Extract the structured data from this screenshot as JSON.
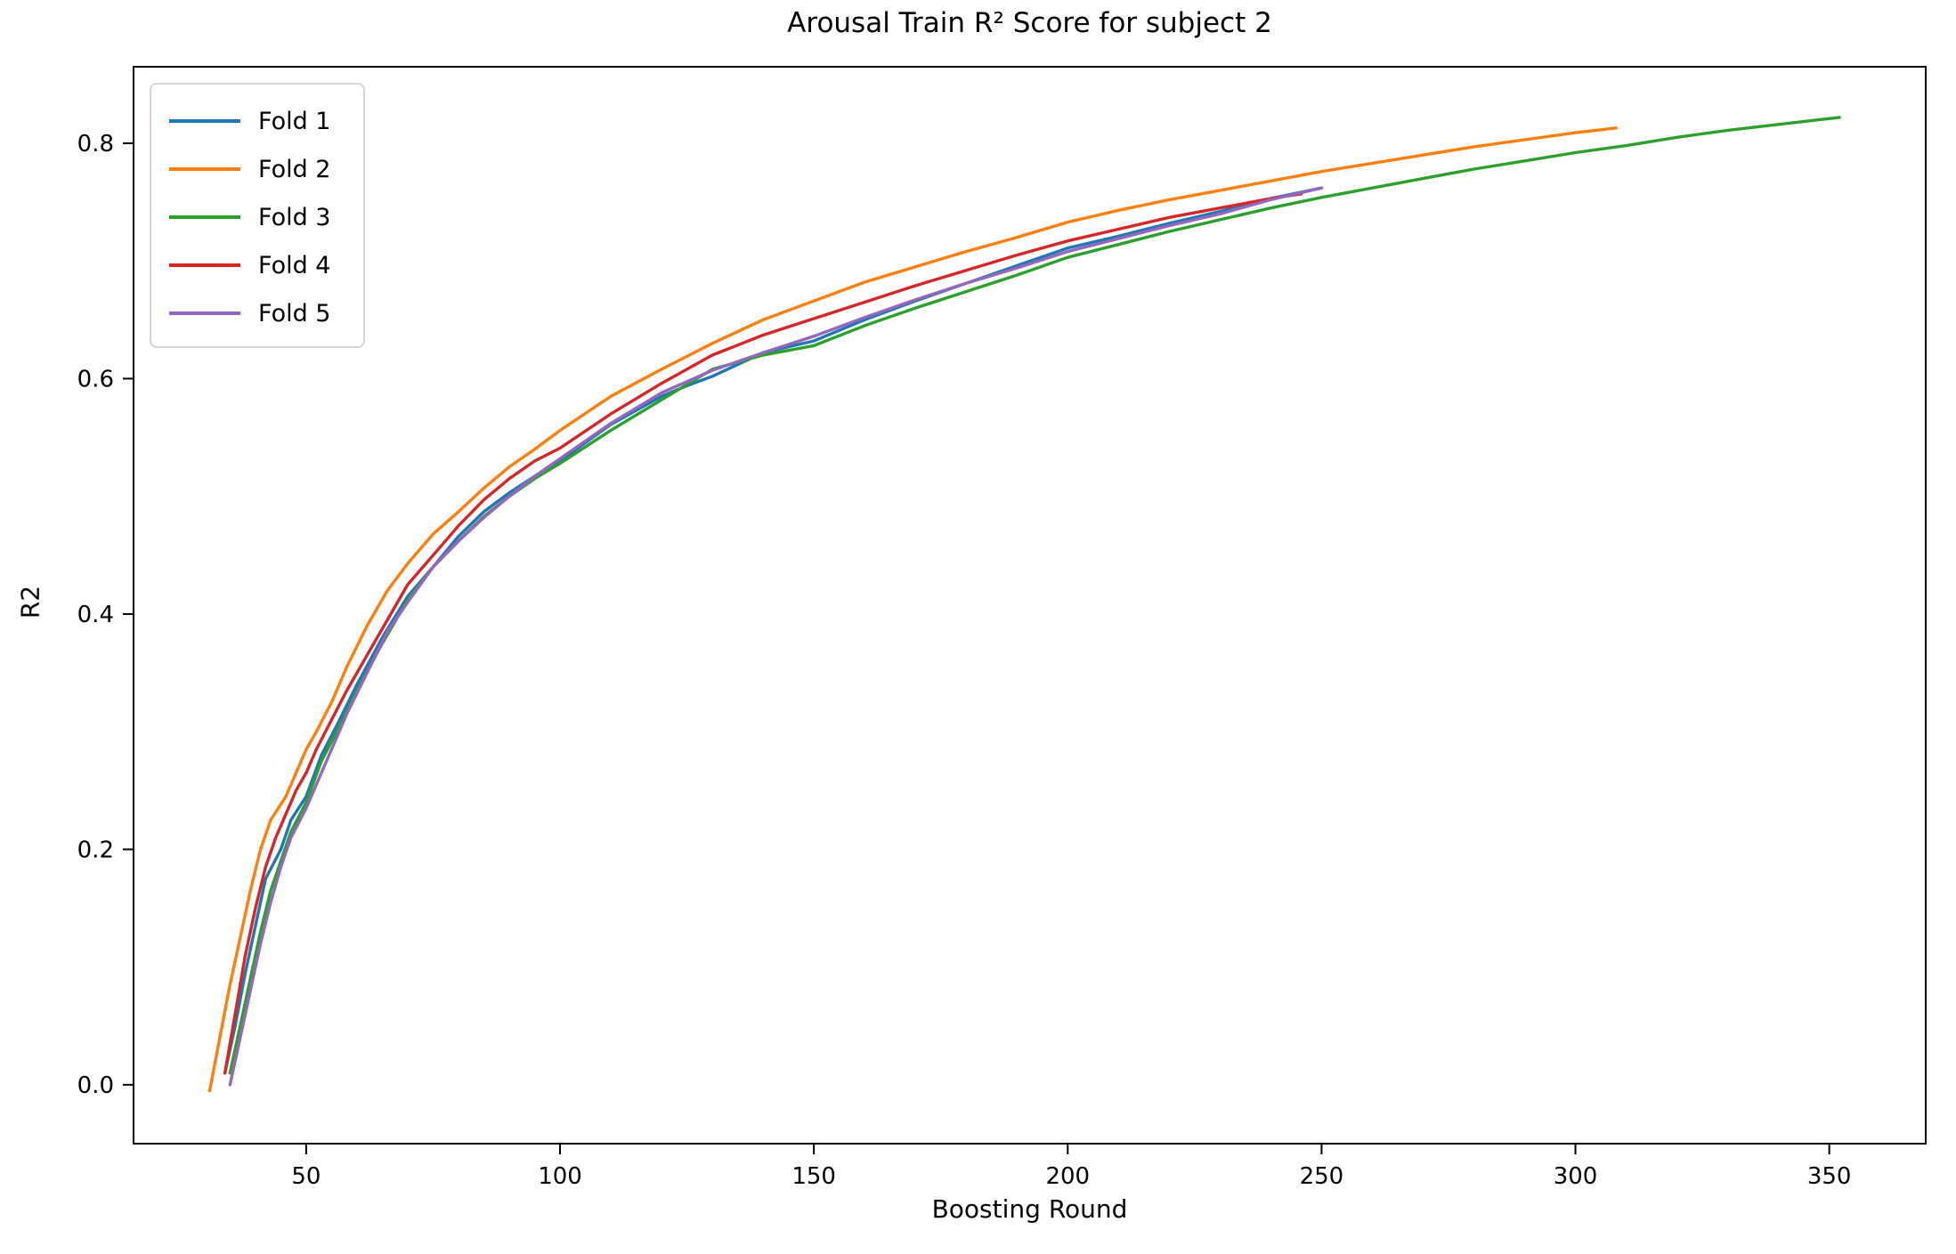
{
  "title": "Arousal Train R² Score for subject 2",
  "axes": {
    "xlabel": "Boosting Round",
    "ylabel": "R2"
  },
  "chart_data": {
    "type": "line",
    "title": "Arousal Train R² Score for subject 2",
    "xlabel": "Boosting Round",
    "ylabel": "R2",
    "xlim": [
      16,
      369
    ],
    "ylim": [
      -0.05,
      0.865
    ],
    "x_ticks": [
      50,
      100,
      150,
      200,
      250,
      300,
      350
    ],
    "y_ticks": [
      0.0,
      0.2,
      0.4,
      0.6,
      0.8
    ],
    "grid": false,
    "legend_position": "upper left",
    "series": [
      {
        "name": "Fold 1",
        "color": "#1f77b4",
        "points": [
          [
            34,
            0.01
          ],
          [
            36,
            0.05
          ],
          [
            38,
            0.095
          ],
          [
            40,
            0.135
          ],
          [
            42,
            0.175
          ],
          [
            45,
            0.2
          ],
          [
            47,
            0.225
          ],
          [
            50,
            0.245
          ],
          [
            53,
            0.28
          ],
          [
            56,
            0.305
          ],
          [
            60,
            0.34
          ],
          [
            65,
            0.38
          ],
          [
            70,
            0.415
          ],
          [
            75,
            0.44
          ],
          [
            80,
            0.466
          ],
          [
            85,
            0.487
          ],
          [
            90,
            0.503
          ],
          [
            95,
            0.517
          ],
          [
            100,
            0.53
          ],
          [
            110,
            0.561
          ],
          [
            120,
            0.585
          ],
          [
            125,
            0.594
          ],
          [
            130,
            0.602
          ],
          [
            135,
            0.612
          ],
          [
            140,
            0.622
          ],
          [
            150,
            0.632
          ],
          [
            160,
            0.65
          ],
          [
            170,
            0.666
          ],
          [
            180,
            0.681
          ],
          [
            190,
            0.696
          ],
          [
            200,
            0.711
          ],
          [
            210,
            0.721
          ],
          [
            220,
            0.732
          ],
          [
            230,
            0.742
          ],
          [
            240,
            0.753
          ],
          [
            250,
            0.762
          ]
        ]
      },
      {
        "name": "Fold 2",
        "color": "#ff7f0e",
        "points": [
          [
            31,
            -0.005
          ],
          [
            33,
            0.04
          ],
          [
            35,
            0.085
          ],
          [
            37,
            0.125
          ],
          [
            39,
            0.165
          ],
          [
            41,
            0.2
          ],
          [
            43,
            0.225
          ],
          [
            46,
            0.245
          ],
          [
            48,
            0.265
          ],
          [
            50,
            0.285
          ],
          [
            52,
            0.3
          ],
          [
            55,
            0.325
          ],
          [
            58,
            0.355
          ],
          [
            62,
            0.39
          ],
          [
            66,
            0.42
          ],
          [
            70,
            0.443
          ],
          [
            75,
            0.468
          ],
          [
            80,
            0.487
          ],
          [
            85,
            0.507
          ],
          [
            90,
            0.525
          ],
          [
            95,
            0.54
          ],
          [
            100,
            0.556
          ],
          [
            110,
            0.585
          ],
          [
            120,
            0.608
          ],
          [
            130,
            0.63
          ],
          [
            140,
            0.65
          ],
          [
            150,
            0.666
          ],
          [
            160,
            0.682
          ],
          [
            170,
            0.695
          ],
          [
            180,
            0.708
          ],
          [
            190,
            0.72
          ],
          [
            200,
            0.733
          ],
          [
            210,
            0.743
          ],
          [
            220,
            0.752
          ],
          [
            230,
            0.76
          ],
          [
            240,
            0.768
          ],
          [
            250,
            0.776
          ],
          [
            260,
            0.783
          ],
          [
            270,
            0.79
          ],
          [
            280,
            0.797
          ],
          [
            290,
            0.803
          ],
          [
            300,
            0.809
          ],
          [
            308,
            0.813
          ]
        ]
      },
      {
        "name": "Fold 3",
        "color": "#2ca02c",
        "points": [
          [
            35,
            0.01
          ],
          [
            37,
            0.05
          ],
          [
            39,
            0.09
          ],
          [
            41,
            0.13
          ],
          [
            43,
            0.165
          ],
          [
            45,
            0.19
          ],
          [
            47,
            0.215
          ],
          [
            50,
            0.24
          ],
          [
            53,
            0.275
          ],
          [
            56,
            0.3
          ],
          [
            60,
            0.335
          ],
          [
            65,
            0.375
          ],
          [
            70,
            0.412
          ],
          [
            75,
            0.44
          ],
          [
            80,
            0.462
          ],
          [
            85,
            0.483
          ],
          [
            90,
            0.5
          ],
          [
            95,
            0.515
          ],
          [
            100,
            0.528
          ],
          [
            110,
            0.556
          ],
          [
            120,
            0.582
          ],
          [
            130,
            0.608
          ],
          [
            140,
            0.62
          ],
          [
            150,
            0.628
          ],
          [
            160,
            0.645
          ],
          [
            170,
            0.66
          ],
          [
            180,
            0.674
          ],
          [
            190,
            0.688
          ],
          [
            200,
            0.703
          ],
          [
            210,
            0.714
          ],
          [
            220,
            0.725
          ],
          [
            230,
            0.735
          ],
          [
            240,
            0.745
          ],
          [
            250,
            0.754
          ],
          [
            260,
            0.762
          ],
          [
            270,
            0.77
          ],
          [
            280,
            0.778
          ],
          [
            290,
            0.785
          ],
          [
            300,
            0.792
          ],
          [
            310,
            0.798
          ],
          [
            320,
            0.805
          ],
          [
            330,
            0.811
          ],
          [
            340,
            0.816
          ],
          [
            352,
            0.822
          ]
        ]
      },
      {
        "name": "Fold 4",
        "color": "#d62728",
        "points": [
          [
            34,
            0.01
          ],
          [
            36,
            0.06
          ],
          [
            38,
            0.11
          ],
          [
            40,
            0.15
          ],
          [
            42,
            0.185
          ],
          [
            44,
            0.21
          ],
          [
            46,
            0.23
          ],
          [
            48,
            0.25
          ],
          [
            50,
            0.265
          ],
          [
            52,
            0.285
          ],
          [
            55,
            0.31
          ],
          [
            58,
            0.335
          ],
          [
            62,
            0.365
          ],
          [
            66,
            0.395
          ],
          [
            70,
            0.425
          ],
          [
            75,
            0.45
          ],
          [
            80,
            0.475
          ],
          [
            85,
            0.497
          ],
          [
            90,
            0.515
          ],
          [
            95,
            0.53
          ],
          [
            100,
            0.541
          ],
          [
            110,
            0.57
          ],
          [
            120,
            0.596
          ],
          [
            130,
            0.62
          ],
          [
            140,
            0.637
          ],
          [
            150,
            0.651
          ],
          [
            160,
            0.665
          ],
          [
            170,
            0.679
          ],
          [
            180,
            0.692
          ],
          [
            190,
            0.705
          ],
          [
            200,
            0.717
          ],
          [
            210,
            0.727
          ],
          [
            220,
            0.737
          ],
          [
            230,
            0.745
          ],
          [
            240,
            0.753
          ],
          [
            246,
            0.757
          ]
        ]
      },
      {
        "name": "Fold 5",
        "color": "#9467bd",
        "points": [
          [
            35,
            0.0
          ],
          [
            37,
            0.04
          ],
          [
            39,
            0.08
          ],
          [
            41,
            0.12
          ],
          [
            43,
            0.155
          ],
          [
            45,
            0.185
          ],
          [
            47,
            0.21
          ],
          [
            50,
            0.235
          ],
          [
            52,
            0.255
          ],
          [
            55,
            0.285
          ],
          [
            58,
            0.315
          ],
          [
            62,
            0.35
          ],
          [
            66,
            0.385
          ],
          [
            70,
            0.41
          ],
          [
            75,
            0.44
          ],
          [
            80,
            0.462
          ],
          [
            85,
            0.482
          ],
          [
            90,
            0.5
          ],
          [
            95,
            0.517
          ],
          [
            100,
            0.532
          ],
          [
            110,
            0.562
          ],
          [
            120,
            0.588
          ],
          [
            130,
            0.607
          ],
          [
            140,
            0.622
          ],
          [
            150,
            0.636
          ],
          [
            160,
            0.652
          ],
          [
            170,
            0.667
          ],
          [
            180,
            0.681
          ],
          [
            190,
            0.694
          ],
          [
            200,
            0.708
          ],
          [
            210,
            0.719
          ],
          [
            220,
            0.73
          ],
          [
            230,
            0.74
          ],
          [
            240,
            0.752
          ],
          [
            250,
            0.762
          ]
        ]
      }
    ]
  },
  "style": {
    "spine_color": "#000000",
    "background": "#ffffff",
    "legend_border": "#d5d5d5"
  }
}
